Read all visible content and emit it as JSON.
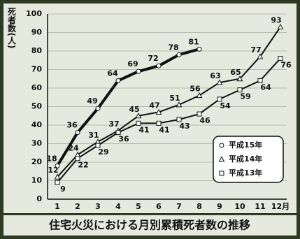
{
  "chart_data": {
    "type": "line",
    "title": "住宅火災における月別累積死者数の推移",
    "y_label": "死者数(人)",
    "categories": [
      "1",
      "2",
      "3",
      "4",
      "5",
      "6",
      "7",
      "8",
      "9",
      "10",
      "11",
      "12月"
    ],
    "series": [
      {
        "name": "平成15年",
        "marker": "circle",
        "color": "#111111",
        "values": [
          18,
          36,
          49,
          64,
          69,
          72,
          78,
          81,
          null,
          null,
          null,
          null
        ]
      },
      {
        "name": "平成14年",
        "marker": "triangle",
        "color": "#111111",
        "values": [
          12,
          24,
          31,
          37,
          45,
          47,
          51,
          56,
          63,
          65,
          77,
          93
        ]
      },
      {
        "name": "平成13年",
        "marker": "square",
        "color": "#111111",
        "values": [
          9,
          22,
          29,
          36,
          41,
          41,
          43,
          46,
          54,
          59,
          64,
          76
        ]
      }
    ],
    "ylim": [
      0,
      100
    ],
    "yticks": [
      0,
      10,
      20,
      30,
      40,
      50,
      60,
      70,
      80,
      90,
      100
    ],
    "grid": true,
    "legend": "lower right"
  }
}
